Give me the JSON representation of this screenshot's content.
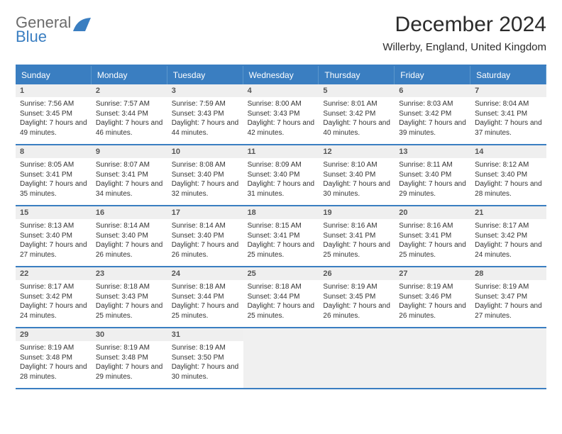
{
  "brand": {
    "word1": "General",
    "word2": "Blue"
  },
  "title": "December 2024",
  "location": "Willerby, England, United Kingdom",
  "colors": {
    "accent": "#3a7ec1",
    "accent_border": "#5b97cc",
    "header_bg": "#efefef",
    "empty_bg": "#f0f0f0",
    "text": "#333333",
    "brand_gray": "#6b6b6b"
  },
  "day_headers": [
    "Sunday",
    "Monday",
    "Tuesday",
    "Wednesday",
    "Thursday",
    "Friday",
    "Saturday"
  ],
  "grid": {
    "cols": 7,
    "rows": 5
  },
  "days": [
    {
      "n": "1",
      "sunrise": "7:56 AM",
      "sunset": "3:45 PM",
      "daylight": "7 hours and 49 minutes."
    },
    {
      "n": "2",
      "sunrise": "7:57 AM",
      "sunset": "3:44 PM",
      "daylight": "7 hours and 46 minutes."
    },
    {
      "n": "3",
      "sunrise": "7:59 AM",
      "sunset": "3:43 PM",
      "daylight": "7 hours and 44 minutes."
    },
    {
      "n": "4",
      "sunrise": "8:00 AM",
      "sunset": "3:43 PM",
      "daylight": "7 hours and 42 minutes."
    },
    {
      "n": "5",
      "sunrise": "8:01 AM",
      "sunset": "3:42 PM",
      "daylight": "7 hours and 40 minutes."
    },
    {
      "n": "6",
      "sunrise": "8:03 AM",
      "sunset": "3:42 PM",
      "daylight": "7 hours and 39 minutes."
    },
    {
      "n": "7",
      "sunrise": "8:04 AM",
      "sunset": "3:41 PM",
      "daylight": "7 hours and 37 minutes."
    },
    {
      "n": "8",
      "sunrise": "8:05 AM",
      "sunset": "3:41 PM",
      "daylight": "7 hours and 35 minutes."
    },
    {
      "n": "9",
      "sunrise": "8:07 AM",
      "sunset": "3:41 PM",
      "daylight": "7 hours and 34 minutes."
    },
    {
      "n": "10",
      "sunrise": "8:08 AM",
      "sunset": "3:40 PM",
      "daylight": "7 hours and 32 minutes."
    },
    {
      "n": "11",
      "sunrise": "8:09 AM",
      "sunset": "3:40 PM",
      "daylight": "7 hours and 31 minutes."
    },
    {
      "n": "12",
      "sunrise": "8:10 AM",
      "sunset": "3:40 PM",
      "daylight": "7 hours and 30 minutes."
    },
    {
      "n": "13",
      "sunrise": "8:11 AM",
      "sunset": "3:40 PM",
      "daylight": "7 hours and 29 minutes."
    },
    {
      "n": "14",
      "sunrise": "8:12 AM",
      "sunset": "3:40 PM",
      "daylight": "7 hours and 28 minutes."
    },
    {
      "n": "15",
      "sunrise": "8:13 AM",
      "sunset": "3:40 PM",
      "daylight": "7 hours and 27 minutes."
    },
    {
      "n": "16",
      "sunrise": "8:14 AM",
      "sunset": "3:40 PM",
      "daylight": "7 hours and 26 minutes."
    },
    {
      "n": "17",
      "sunrise": "8:14 AM",
      "sunset": "3:40 PM",
      "daylight": "7 hours and 26 minutes."
    },
    {
      "n": "18",
      "sunrise": "8:15 AM",
      "sunset": "3:41 PM",
      "daylight": "7 hours and 25 minutes."
    },
    {
      "n": "19",
      "sunrise": "8:16 AM",
      "sunset": "3:41 PM",
      "daylight": "7 hours and 25 minutes."
    },
    {
      "n": "20",
      "sunrise": "8:16 AM",
      "sunset": "3:41 PM",
      "daylight": "7 hours and 25 minutes."
    },
    {
      "n": "21",
      "sunrise": "8:17 AM",
      "sunset": "3:42 PM",
      "daylight": "7 hours and 24 minutes."
    },
    {
      "n": "22",
      "sunrise": "8:17 AM",
      "sunset": "3:42 PM",
      "daylight": "7 hours and 24 minutes."
    },
    {
      "n": "23",
      "sunrise": "8:18 AM",
      "sunset": "3:43 PM",
      "daylight": "7 hours and 25 minutes."
    },
    {
      "n": "24",
      "sunrise": "8:18 AM",
      "sunset": "3:44 PM",
      "daylight": "7 hours and 25 minutes."
    },
    {
      "n": "25",
      "sunrise": "8:18 AM",
      "sunset": "3:44 PM",
      "daylight": "7 hours and 25 minutes."
    },
    {
      "n": "26",
      "sunrise": "8:19 AM",
      "sunset": "3:45 PM",
      "daylight": "7 hours and 26 minutes."
    },
    {
      "n": "27",
      "sunrise": "8:19 AM",
      "sunset": "3:46 PM",
      "daylight": "7 hours and 26 minutes."
    },
    {
      "n": "28",
      "sunrise": "8:19 AM",
      "sunset": "3:47 PM",
      "daylight": "7 hours and 27 minutes."
    },
    {
      "n": "29",
      "sunrise": "8:19 AM",
      "sunset": "3:48 PM",
      "daylight": "7 hours and 28 minutes."
    },
    {
      "n": "30",
      "sunrise": "8:19 AM",
      "sunset": "3:48 PM",
      "daylight": "7 hours and 29 minutes."
    },
    {
      "n": "31",
      "sunrise": "8:19 AM",
      "sunset": "3:50 PM",
      "daylight": "7 hours and 30 minutes."
    }
  ],
  "labels": {
    "sunrise": "Sunrise: ",
    "sunset": "Sunset: ",
    "daylight": "Daylight: "
  }
}
